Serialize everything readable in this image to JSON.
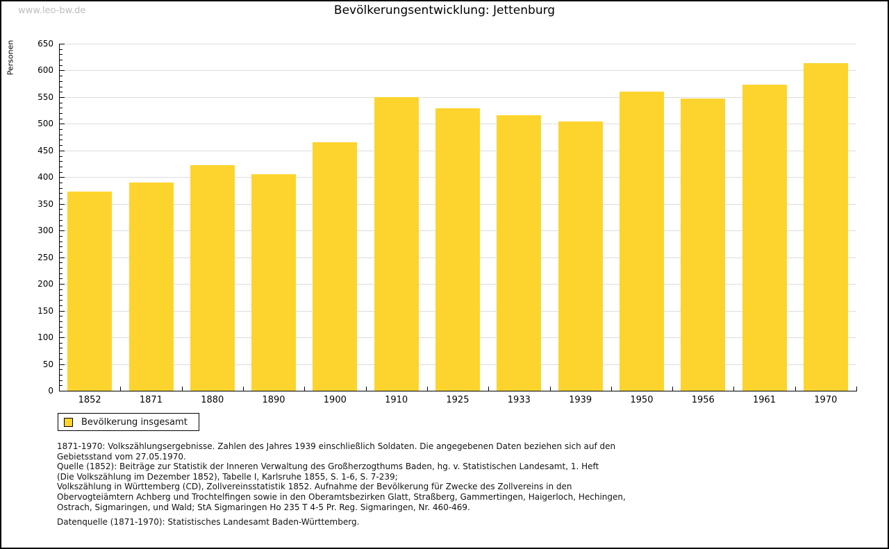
{
  "page": {
    "watermark": "www.leo-bw.de",
    "title": "Bevölkerungsentwicklung: Jettenburg"
  },
  "chart_data": {
    "type": "bar",
    "title": "Bevölkerungsentwicklung: Jettenburg",
    "xlabel": "",
    "ylabel": "Personen",
    "categories": [
      "1852",
      "1871",
      "1880",
      "1890",
      "1900",
      "1910",
      "1925",
      "1933",
      "1939",
      "1950",
      "1956",
      "1961",
      "1970"
    ],
    "series": [
      {
        "name": "Bevölkerung insgesamt",
        "values": [
          373,
          390,
          423,
          405,
          465,
          550,
          529,
          516,
          504,
          560,
          547,
          573,
          613
        ]
      }
    ],
    "ylim": [
      0,
      650
    ],
    "ytick_step": 50,
    "ytick_minor_step": 10,
    "grid": true,
    "legend_position": "bottom-left"
  },
  "legend": {
    "label": "Bevölkerung insgesamt"
  },
  "footnotes": {
    "lines": [
      "1871-1970: Volkszählungsergebnisse. Zahlen des Jahres 1939 einschließlich Soldaten. Die angegebenen Daten beziehen sich auf den",
      "Gebietsstand vom 27.05.1970.",
      "Quelle (1852): Beiträge zur Statistik der Inneren Verwaltung des Großherzogthums Baden, hg. v. Statistischen Landesamt, 1. Heft",
      "(Die Volkszählung im Dezember 1852), Tabelle I, Karlsruhe 1855, S. 1-6, S. 7-239;",
      "Volkszählung in Württemberg (CD), Zollvereinsstatistik 1852. Aufnahme der Bevölkerung für Zwecke des Zollvereins in den",
      "Obervogteiämtern Achberg und Trochtelfingen sowie in den Oberamtsbezirken Glatt, Straßberg, Gammertingen, Haigerloch, Hechingen,",
      "Ostrach, Sigmaringen, und Wald; StA Sigmaringen Ho 235 T 4-5 Pr. Reg. Sigmaringen, Nr. 460-469."
    ],
    "datasource": "Datenquelle (1871-1970): Statistisches Landesamt Baden-Württemberg."
  },
  "colors": {
    "bar": "#FDD42E",
    "grid": "#DCDCDC",
    "axis": "#000000",
    "watermark": "#BDBDBD",
    "text": "#111111"
  }
}
